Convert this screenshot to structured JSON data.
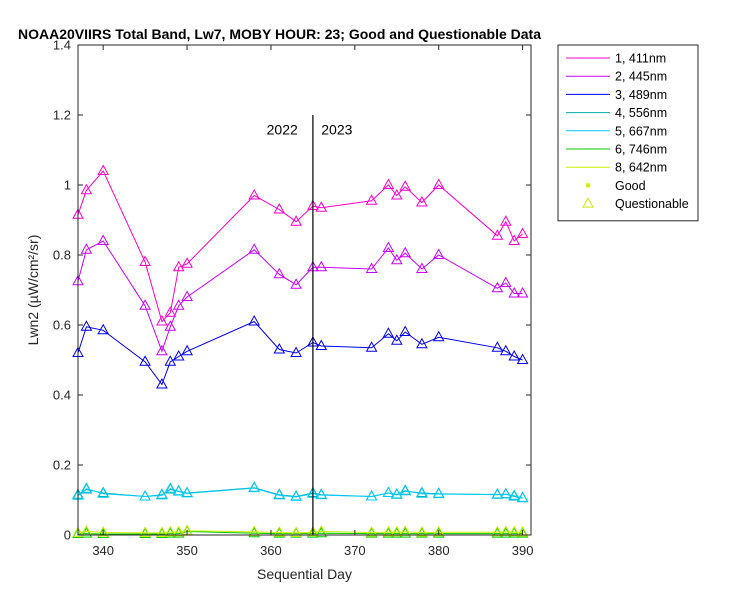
{
  "chart_data": {
    "type": "line",
    "title": "NOAA20VIIRS Total Band, Lw7, MOBY HOUR: 23;  Good and Questionable Data",
    "xlabel": "Sequential Day",
    "ylabel": "Lwn2 (µW/cm²/sr)",
    "xlim": [
      337,
      391
    ],
    "ylim": [
      0,
      1.4
    ],
    "xticks": [
      340,
      350,
      360,
      370,
      380,
      390
    ],
    "yticks": [
      0,
      0.2,
      0.4,
      0.6,
      0.8,
      1,
      1.2,
      1.4
    ],
    "ytick_labels": [
      "0",
      "0.2",
      "0.4",
      "0.6",
      "0.8",
      "1",
      "1.2",
      "1.4"
    ],
    "x": [
      337,
      338,
      340,
      345,
      347,
      348,
      349,
      350,
      358,
      361,
      363,
      365,
      366,
      372,
      374,
      375,
      376,
      378,
      380,
      387,
      388,
      389,
      390
    ],
    "series": [
      {
        "name": "1, 411nm",
        "color": "#ff00cc",
        "values": [
          0.915,
          0.985,
          1.04,
          0.78,
          0.61,
          0.635,
          0.765,
          0.775,
          0.97,
          0.93,
          0.895,
          0.94,
          0.935,
          0.955,
          1.0,
          0.97,
          0.995,
          0.95,
          1.0,
          0.855,
          0.895,
          0.84,
          0.86
        ]
      },
      {
        "name": "2, 445nm",
        "color": "#cc00ff",
        "values": [
          0.725,
          0.815,
          0.84,
          0.655,
          0.525,
          0.595,
          0.655,
          0.68,
          0.815,
          0.745,
          0.715,
          0.765,
          0.765,
          0.76,
          0.82,
          0.785,
          0.805,
          0.76,
          0.8,
          0.705,
          0.72,
          0.69,
          0.69
        ]
      },
      {
        "name": "3, 489nm",
        "color": "#0000ee",
        "values": [
          0.52,
          0.595,
          0.585,
          0.495,
          0.43,
          0.495,
          0.51,
          0.525,
          0.61,
          0.53,
          0.52,
          0.55,
          0.54,
          0.535,
          0.575,
          0.555,
          0.58,
          0.545,
          0.565,
          0.535,
          0.525,
          0.51,
          0.5
        ]
      },
      {
        "name": "4, 556nm",
        "color": "#00aaaa",
        "values": [
          0.115,
          0.13,
          0.12,
          0.11,
          0.115,
          0.13,
          0.125,
          0.12,
          0.135,
          0.115,
          0.11,
          0.12,
          0.115,
          0.11,
          0.12,
          0.115,
          0.125,
          0.12,
          0.118,
          0.115,
          0.117,
          0.11,
          0.105
        ]
      },
      {
        "name": "5, 667nm",
        "color": "#00ccff",
        "values": [
          0.112,
          0.132,
          0.118,
          0.11,
          0.113,
          0.132,
          0.124,
          0.119,
          0.134,
          0.113,
          0.109,
          0.118,
          0.114,
          0.11,
          0.12,
          0.116,
          0.127,
          0.118,
          0.117,
          0.116,
          0.116,
          0.112,
          0.106
        ]
      },
      {
        "name": "6, 746nm",
        "color": "#00cc00",
        "values": [
          0.003,
          0.004,
          0.003,
          0.003,
          0.003,
          0.004,
          0.004,
          0.01,
          0.005,
          0.004,
          0.004,
          0.004,
          0.005,
          0.004,
          0.004,
          0.004,
          0.004,
          0.004,
          0.004,
          0.004,
          0.004,
          0.004,
          0.004
        ]
      },
      {
        "name": "8, 642nm",
        "color": "#ccee00",
        "values": [
          0.006,
          0.01,
          0.007,
          0.006,
          0.006,
          0.008,
          0.008,
          0.012,
          0.009,
          0.007,
          0.006,
          0.008,
          0.01,
          0.007,
          0.008,
          0.008,
          0.009,
          0.007,
          0.008,
          0.008,
          0.009,
          0.008,
          0.007
        ]
      }
    ],
    "vline": {
      "x": 365,
      "y_top": 1.2
    },
    "annotations": [
      {
        "text": "2022",
        "x": 363.2,
        "y": 1.145,
        "anchor": "end"
      },
      {
        "text": "2023",
        "x": 366,
        "y": 1.145,
        "anchor": "start"
      }
    ],
    "legend": {
      "placement": "outside-right-top",
      "marker_entries": [
        {
          "label": "Good",
          "marker": "star",
          "color": "#ccee00"
        },
        {
          "label": "Questionable",
          "marker": "triangle",
          "color": "#ccee00"
        }
      ]
    },
    "marker": "triangle",
    "grid": false
  }
}
